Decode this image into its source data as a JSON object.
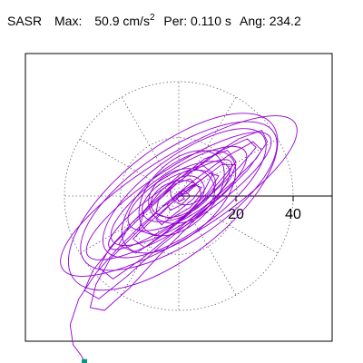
{
  "header": {
    "station": "SASR",
    "max_label": "Max:",
    "max_value": "50.9",
    "max_unit": "cm/s",
    "max_unit_exp": "2",
    "per_label": "Per:",
    "per_value": "0.110 s",
    "ang_label": "Ang:",
    "ang_value": "234.2"
  },
  "chart_data": {
    "type": "line",
    "subtype": "polar-particle-motion",
    "title": "",
    "xlabel": "",
    "ylabel": "",
    "polar_ring_labels": [
      "20",
      "40"
    ],
    "polar_rings": [
      20,
      40
    ],
    "max_radius": 40,
    "spoke_step_deg": 30,
    "grid": true,
    "axis_direction_deg": 0,
    "trace_color": "#9400d3",
    "endpoint_color": "#009c7c",
    "series": [
      {
        "values_note": "",
        "points": [
          [
            0,
            0
          ],
          [
            3,
            1
          ],
          [
            6,
            4
          ],
          [
            4,
            6
          ],
          [
            -2,
            4
          ],
          [
            -7,
            -1
          ],
          [
            -8,
            -6
          ],
          [
            -3,
            -8
          ],
          [
            4,
            -4
          ],
          [
            9,
            2
          ],
          [
            12,
            8
          ],
          [
            8,
            11
          ],
          [
            1,
            8
          ],
          [
            -6,
            2
          ],
          [
            -12,
            -5
          ],
          [
            -14,
            -12
          ],
          [
            -8,
            -14
          ],
          [
            0,
            -9
          ],
          [
            8,
            -2
          ],
          [
            15,
            6
          ],
          [
            20,
            12
          ],
          [
            17,
            16
          ],
          [
            9,
            13
          ],
          [
            0,
            6
          ],
          [
            -9,
            -2
          ],
          [
            -17,
            -10
          ],
          [
            -21,
            -17
          ],
          [
            -15,
            -20
          ],
          [
            -6,
            -14
          ],
          [
            4,
            -6
          ],
          [
            14,
            3
          ],
          [
            22,
            11
          ],
          [
            27,
            17
          ],
          [
            24,
            20
          ],
          [
            15,
            16
          ],
          [
            5,
            9
          ],
          [
            -6,
            0
          ],
          [
            -16,
            -9
          ],
          [
            -24,
            -18
          ],
          [
            -28,
            -25
          ],
          [
            -23,
            -29
          ],
          [
            -13,
            -22
          ],
          [
            -2,
            -13
          ],
          [
            9,
            -4
          ],
          [
            19,
            5
          ],
          [
            27,
            13
          ],
          [
            31,
            19
          ],
          [
            29,
            23
          ],
          [
            21,
            20
          ],
          [
            10,
            13
          ],
          [
            -1,
            4
          ],
          [
            -12,
            -6
          ],
          [
            -22,
            -16
          ],
          [
            -30,
            -26
          ],
          [
            -33,
            -33
          ],
          [
            -28,
            -36
          ],
          [
            -18,
            -28
          ],
          [
            -7,
            -18
          ],
          [
            4,
            -9
          ],
          [
            15,
            0
          ],
          [
            24,
            9
          ],
          [
            29,
            16
          ],
          [
            26,
            19
          ],
          [
            17,
            14
          ],
          [
            6,
            6
          ],
          [
            -5,
            -3
          ],
          [
            -15,
            -13
          ],
          [
            -24,
            -22
          ],
          [
            -29,
            -31
          ],
          [
            -31,
            -39
          ],
          [
            -26,
            -40
          ],
          [
            -17,
            -32
          ],
          [
            -7,
            -21
          ],
          [
            3,
            -11
          ],
          [
            12,
            -2
          ],
          [
            18,
            6
          ],
          [
            20,
            11
          ],
          [
            15,
            11
          ],
          [
            7,
            5
          ],
          [
            -2,
            -2
          ],
          [
            -10,
            -9
          ],
          [
            -16,
            -15
          ],
          [
            -12,
            -18
          ],
          [
            -5,
            -13
          ],
          [
            3,
            -6
          ],
          [
            10,
            1
          ],
          [
            14,
            7
          ],
          [
            11,
            8
          ],
          [
            4,
            3
          ],
          [
            -3,
            -3
          ],
          [
            -8,
            -8
          ],
          [
            -6,
            -10
          ],
          [
            -1,
            -6
          ],
          [
            5,
            -1
          ],
          [
            8,
            3
          ],
          [
            5,
            4
          ],
          [
            0,
            1
          ],
          [
            -4,
            -3
          ],
          [
            -3,
            -5
          ],
          [
            1,
            -3
          ],
          [
            4,
            0
          ],
          [
            2,
            2
          ],
          [
            -1,
            0
          ],
          [
            0,
            -2
          ],
          [
            2,
            -1
          ],
          [
            1,
            1
          ],
          [
            0,
            0
          ],
          [
            -6,
            -4
          ],
          [
            -14,
            -11
          ],
          [
            -22,
            -19
          ],
          [
            -29,
            -27
          ],
          [
            -35,
            -36
          ],
          [
            -38,
            -45
          ],
          [
            -37,
            -52
          ],
          [
            -34,
            -56
          ],
          [
            -33,
            -58
          ]
        ],
        "end_point": [
          -33,
          -58
        ]
      }
    ]
  }
}
